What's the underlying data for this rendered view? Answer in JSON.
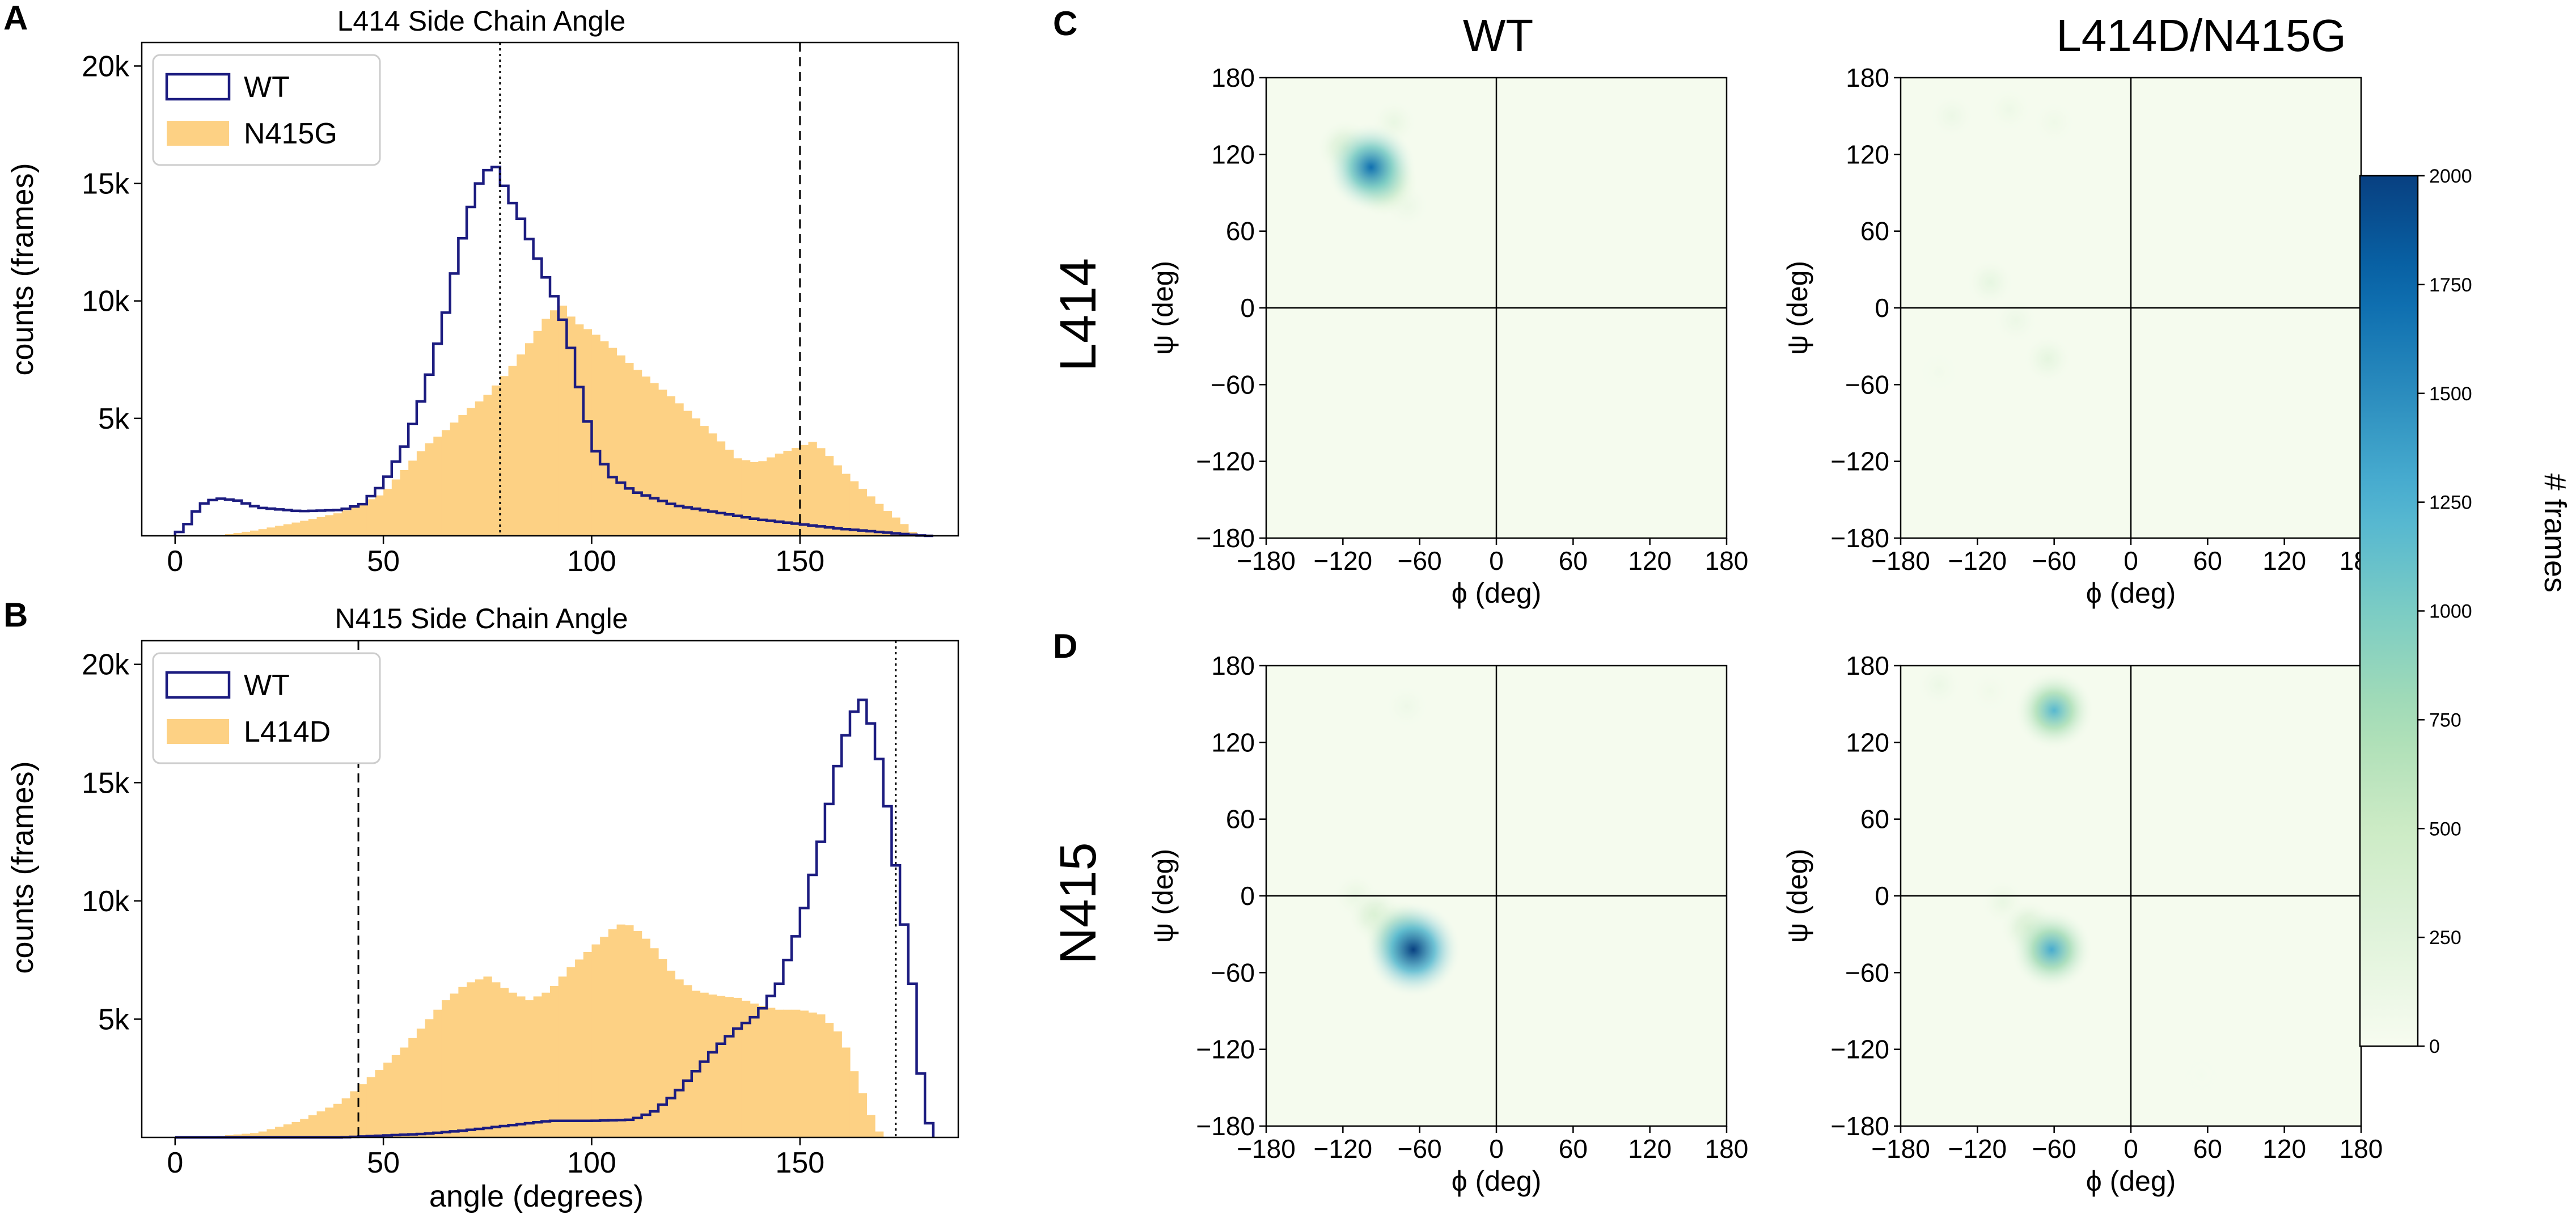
{
  "panel_letters": {
    "A": "A",
    "B": "B",
    "C": "C",
    "D": "D"
  },
  "colors": {
    "wt_line": "#1c1c80",
    "mutant_fill": "#fdd184",
    "axis": "#000000"
  },
  "chart_data": [
    {
      "id": "A",
      "type": "bar",
      "title": "L414 Side Chain Angle",
      "xlabel": "",
      "ylabel": "counts (frames)",
      "xlim": [
        -8,
        188
      ],
      "ylim": [
        0,
        21000
      ],
      "xticks": [
        0,
        50,
        100,
        150
      ],
      "xtick_labels": [
        "0",
        "50",
        "100",
        "150"
      ],
      "yticks": [
        5000,
        10000,
        15000,
        20000
      ],
      "ytick_labels": [
        "5k",
        "10k",
        "15k",
        "20k"
      ],
      "legend": {
        "position": "top-left",
        "entries": [
          "WT",
          "N415G"
        ]
      },
      "series": [
        {
          "name": "WT",
          "style": "step",
          "points": [
            [
              0,
              0
            ],
            [
              3,
              500
            ],
            [
              6,
              1300
            ],
            [
              10,
              1600
            ],
            [
              15,
              1500
            ],
            [
              20,
              1200
            ],
            [
              30,
              1050
            ],
            [
              40,
              1100
            ],
            [
              45,
              1350
            ],
            [
              50,
              2200
            ],
            [
              55,
              3800
            ],
            [
              60,
              6200
            ],
            [
              65,
              9500
            ],
            [
              68,
              12000
            ],
            [
              71,
              14000
            ],
            [
              74,
              15500
            ],
            [
              77,
              15700
            ],
            [
              80,
              14500
            ],
            [
              83,
              13500
            ],
            [
              86,
              12200
            ],
            [
              89,
              11000
            ],
            [
              92,
              9800
            ],
            [
              95,
              8000
            ],
            [
              98,
              5500
            ],
            [
              101,
              3600
            ],
            [
              105,
              2500
            ],
            [
              110,
              1900
            ],
            [
              120,
              1300
            ],
            [
              130,
              1000
            ],
            [
              140,
              700
            ],
            [
              150,
              500
            ],
            [
              160,
              300
            ],
            [
              170,
              150
            ],
            [
              180,
              0
            ]
          ]
        },
        {
          "name": "N415G",
          "style": "filled-histogram",
          "points": [
            [
              10,
              0
            ],
            [
              15,
              120
            ],
            [
              20,
              250
            ],
            [
              30,
              600
            ],
            [
              40,
              1000
            ],
            [
              50,
              1800
            ],
            [
              55,
              2800
            ],
            [
              60,
              3800
            ],
            [
              65,
              4500
            ],
            [
              70,
              5300
            ],
            [
              75,
              6000
            ],
            [
              80,
              7000
            ],
            [
              85,
              8200
            ],
            [
              90,
              9500
            ],
            [
              93,
              9800
            ],
            [
              96,
              9100
            ],
            [
              100,
              8700
            ],
            [
              105,
              8000
            ],
            [
              110,
              7200
            ],
            [
              120,
              5800
            ],
            [
              130,
              4200
            ],
            [
              135,
              3300
            ],
            [
              140,
              3100
            ],
            [
              145,
              3500
            ],
            [
              150,
              3800
            ],
            [
              153,
              4000
            ],
            [
              156,
              3600
            ],
            [
              160,
              2800
            ],
            [
              165,
              2000
            ],
            [
              170,
              1200
            ],
            [
              175,
              500
            ],
            [
              178,
              0
            ]
          ]
        }
      ],
      "vlines": [
        {
          "x": 78,
          "style": "dotted"
        },
        {
          "x": 150,
          "style": "dashed"
        }
      ]
    },
    {
      "id": "B",
      "type": "bar",
      "title": "N415 Side Chain Angle",
      "xlabel": "angle (degrees)",
      "ylabel": "counts (frames)",
      "xlim": [
        -8,
        188
      ],
      "ylim": [
        0,
        21000
      ],
      "xticks": [
        0,
        50,
        100,
        150
      ],
      "xtick_labels": [
        "0",
        "50",
        "100",
        "150"
      ],
      "yticks": [
        5000,
        10000,
        15000,
        20000
      ],
      "ytick_labels": [
        "5k",
        "10k",
        "15k",
        "20k"
      ],
      "legend": {
        "position": "top-left",
        "entries": [
          "WT",
          "L414D"
        ]
      },
      "series": [
        {
          "name": "WT",
          "style": "step",
          "points": [
            [
              0,
              0
            ],
            [
              40,
              0
            ],
            [
              60,
              150
            ],
            [
              70,
              300
            ],
            [
              80,
              500
            ],
            [
              90,
              700
            ],
            [
              100,
              700
            ],
            [
              110,
              750
            ],
            [
              115,
              1100
            ],
            [
              120,
              1800
            ],
            [
              125,
              2800
            ],
            [
              130,
              3800
            ],
            [
              135,
              4600
            ],
            [
              140,
              5200
            ],
            [
              145,
              6500
            ],
            [
              150,
              9000
            ],
            [
              155,
              12500
            ],
            [
              160,
              16500
            ],
            [
              163,
              18000
            ],
            [
              165,
              18500
            ],
            [
              168,
              17000
            ],
            [
              171,
              14000
            ],
            [
              173,
              11500
            ],
            [
              175,
              9000
            ],
            [
              177,
              6500
            ],
            [
              178,
              4200
            ],
            [
              180,
              1200
            ],
            [
              182,
              0
            ]
          ]
        },
        {
          "name": "L414D",
          "style": "filled-histogram",
          "points": [
            [
              0,
              0
            ],
            [
              10,
              50
            ],
            [
              20,
              200
            ],
            [
              30,
              700
            ],
            [
              40,
              1500
            ],
            [
              50,
              3000
            ],
            [
              55,
              3800
            ],
            [
              60,
              4800
            ],
            [
              65,
              5800
            ],
            [
              70,
              6500
            ],
            [
              75,
              6800
            ],
            [
              80,
              6200
            ],
            [
              85,
              5800
            ],
            [
              90,
              6200
            ],
            [
              95,
              7200
            ],
            [
              100,
              8000
            ],
            [
              105,
              8800
            ],
            [
              108,
              9100
            ],
            [
              112,
              8600
            ],
            [
              116,
              7800
            ],
            [
              120,
              6800
            ],
            [
              125,
              6200
            ],
            [
              130,
              6000
            ],
            [
              135,
              5900
            ],
            [
              140,
              5600
            ],
            [
              145,
              5400
            ],
            [
              150,
              5400
            ],
            [
              155,
              5200
            ],
            [
              160,
              4300
            ],
            [
              163,
              2800
            ],
            [
              166,
              1400
            ],
            [
              168,
              500
            ],
            [
              170,
              0
            ]
          ]
        }
      ],
      "vlines": [
        {
          "x": 44,
          "style": "dashed"
        },
        {
          "x": 173,
          "style": "dotted"
        }
      ]
    },
    {
      "id": "C",
      "type": "heatmap",
      "row_label": "L414",
      "column_titles": [
        "WT",
        "L414D/N415G"
      ],
      "xlabel": "ϕ (deg)",
      "ylabel": "ψ (deg)",
      "xlim": [
        -180,
        180
      ],
      "ylim": [
        -180,
        180
      ],
      "xtick_labels": [
        "−180",
        "−120",
        "−60",
        "0",
        "60",
        "120",
        "180"
      ],
      "ytick_labels": [
        "180",
        "120",
        "60",
        "0",
        "−60",
        "−120",
        "−180"
      ],
      "subplots": [
        {
          "name": "WT",
          "hotspots": [
            {
              "phi": -98,
              "psi": 110,
              "count": 1700
            },
            {
              "phi": -88,
              "psi": 98,
              "count": 800
            },
            {
              "phi": -118,
              "psi": 125,
              "count": 400
            },
            {
              "phi": -80,
              "psi": 145,
              "count": 150
            },
            {
              "phi": -70,
              "psi": 80,
              "count": 120
            }
          ]
        },
        {
          "name": "L414D/N415G",
          "hotspots": [
            {
              "phi": -140,
              "psi": 150,
              "count": 120
            },
            {
              "phi": -95,
              "psi": 155,
              "count": 110
            },
            {
              "phi": -60,
              "psi": 145,
              "count": 90
            },
            {
              "phi": -110,
              "psi": 20,
              "count": 180
            },
            {
              "phi": -90,
              "psi": -10,
              "count": 120
            },
            {
              "phi": -65,
              "psi": -40,
              "count": 200
            },
            {
              "phi": -150,
              "psi": -50,
              "count": 60
            }
          ]
        }
      ]
    },
    {
      "id": "D",
      "type": "heatmap",
      "row_label": "N415",
      "column_titles": [],
      "xlabel": "ϕ (deg)",
      "ylabel": "ψ (deg)",
      "xlim": [
        -180,
        180
      ],
      "ylim": [
        -180,
        180
      ],
      "xtick_labels": [
        "−180",
        "−120",
        "−60",
        "0",
        "60",
        "120",
        "180"
      ],
      "ytick_labels": [
        "180",
        "120",
        "60",
        "0",
        "−60",
        "−120",
        "−180"
      ],
      "subplots": [
        {
          "name": "WT",
          "hotspots": [
            {
              "phi": -65,
              "psi": -42,
              "count": 2000
            },
            {
              "phi": -75,
              "psi": -32,
              "count": 1000
            },
            {
              "phi": -95,
              "psi": -15,
              "count": 350
            },
            {
              "phi": -110,
              "psi": 0,
              "count": 150
            },
            {
              "phi": -70,
              "psi": 148,
              "count": 100
            }
          ]
        },
        {
          "name": "L414D/N415G",
          "hotspots": [
            {
              "phi": -60,
              "psi": 145,
              "count": 1200
            },
            {
              "phi": -62,
              "psi": -42,
              "count": 1300
            },
            {
              "phi": -80,
              "psi": -25,
              "count": 400
            },
            {
              "phi": -100,
              "psi": -5,
              "count": 150
            },
            {
              "phi": -150,
              "psi": 165,
              "count": 120
            },
            {
              "phi": -110,
              "psi": 160,
              "count": 80
            },
            {
              "phi": 55,
              "psi": -140,
              "count": 40
            }
          ]
        }
      ]
    },
    {
      "id": "colorbar",
      "type": "colorbar",
      "label": "# frames",
      "range": [
        0,
        2000
      ],
      "ticks": [
        0,
        250,
        500,
        750,
        1000,
        1250,
        1500,
        1750,
        2000
      ],
      "tick_labels": [
        "0",
        "250",
        "500",
        "750",
        "1000",
        "1250",
        "1500",
        "1750",
        "2000"
      ],
      "colormap": "GnBu"
    }
  ]
}
